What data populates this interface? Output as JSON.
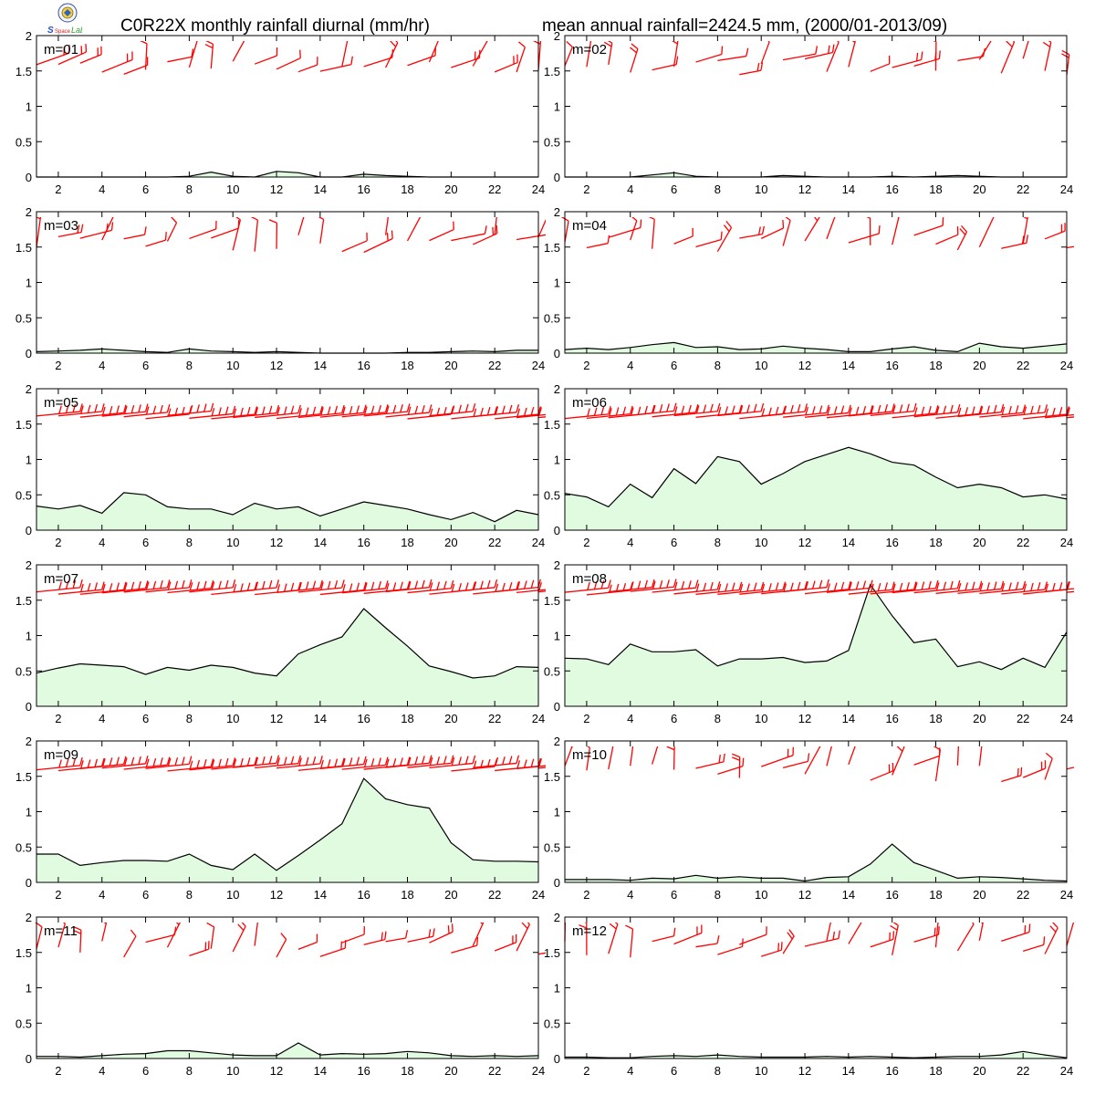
{
  "header": {
    "title_left": "C0R22X monthly rainfall diurnal (mm/hr)",
    "title_right": "mean annual rainfall=2424.5 mm, (2000/01-2013/09)",
    "logo_text": "Lab"
  },
  "colors": {
    "fill": "#e0fbe0",
    "line": "#000000",
    "barb": "#ff0000"
  },
  "chart_data": {
    "type": "area",
    "xlim": [
      1,
      24
    ],
    "ylim": [
      0,
      2
    ],
    "x_ticks": [
      "2",
      "4",
      "6",
      "8",
      "10",
      "12",
      "14",
      "16",
      "18",
      "20",
      "22",
      "24"
    ],
    "y_ticks": [
      "0",
      "0.5",
      "1",
      "1.5",
      "2"
    ],
    "panels": [
      {
        "label": "m=01",
        "values": [
          0.0,
          0.0,
          0.0,
          0.0,
          0.0,
          0.0,
          0.0,
          0.01,
          0.07,
          0.01,
          0.0,
          0.08,
          0.06,
          0.0,
          0.0,
          0.04,
          0.02,
          0.01,
          0.0,
          0.0,
          0.0,
          0.0,
          0.0,
          0.0
        ]
      },
      {
        "label": "m=02",
        "values": [
          0.0,
          0.0,
          0.0,
          0.0,
          0.03,
          0.06,
          0.01,
          0.0,
          0.0,
          0.0,
          0.02,
          0.01,
          0.0,
          0.0,
          0.0,
          0.01,
          0.0,
          0.01,
          0.02,
          0.01,
          0.0,
          0.0,
          0.0,
          0.0
        ]
      },
      {
        "label": "m=03",
        "values": [
          0.02,
          0.03,
          0.04,
          0.06,
          0.04,
          0.02,
          0.01,
          0.06,
          0.03,
          0.02,
          0.01,
          0.02,
          0.01,
          0.0,
          0.0,
          0.0,
          0.0,
          0.01,
          0.01,
          0.02,
          0.03,
          0.02,
          0.04,
          0.04
        ]
      },
      {
        "label": "m=04",
        "values": [
          0.05,
          0.07,
          0.05,
          0.08,
          0.12,
          0.15,
          0.08,
          0.09,
          0.05,
          0.06,
          0.1,
          0.07,
          0.05,
          0.02,
          0.02,
          0.06,
          0.09,
          0.04,
          0.02,
          0.14,
          0.09,
          0.07,
          0.1,
          0.13
        ]
      },
      {
        "label": "m=05",
        "values": [
          0.34,
          0.3,
          0.35,
          0.24,
          0.53,
          0.5,
          0.33,
          0.3,
          0.3,
          0.22,
          0.38,
          0.3,
          0.33,
          0.2,
          0.3,
          0.4,
          0.35,
          0.3,
          0.22,
          0.15,
          0.25,
          0.12,
          0.28,
          0.22
        ]
      },
      {
        "label": "m=06",
        "values": [
          0.52,
          0.47,
          0.33,
          0.65,
          0.46,
          0.87,
          0.66,
          1.04,
          0.97,
          0.65,
          0.8,
          0.97,
          1.07,
          1.17,
          1.08,
          0.96,
          0.92,
          0.75,
          0.6,
          0.65,
          0.6,
          0.47,
          0.5,
          0.44
        ]
      },
      {
        "label": "m=07",
        "values": [
          0.47,
          0.54,
          0.6,
          0.58,
          0.56,
          0.45,
          0.55,
          0.51,
          0.58,
          0.55,
          0.47,
          0.43,
          0.74,
          0.87,
          0.98,
          1.38,
          1.11,
          0.85,
          0.57,
          0.49,
          0.4,
          0.43,
          0.56,
          0.55
        ]
      },
      {
        "label": "m=08",
        "values": [
          0.68,
          0.67,
          0.59,
          0.88,
          0.77,
          0.77,
          0.8,
          0.57,
          0.67,
          0.67,
          0.69,
          0.62,
          0.64,
          0.79,
          1.72,
          1.28,
          0.9,
          0.95,
          0.56,
          0.63,
          0.52,
          0.68,
          0.55,
          1.05
        ]
      },
      {
        "label": "m=09",
        "values": [
          0.4,
          0.4,
          0.24,
          0.28,
          0.31,
          0.31,
          0.3,
          0.4,
          0.24,
          0.18,
          0.4,
          0.17,
          0.38,
          0.6,
          0.83,
          1.47,
          1.18,
          1.1,
          1.05,
          0.56,
          0.32,
          0.3,
          0.3,
          0.29
        ]
      },
      {
        "label": "m=10",
        "values": [
          0.04,
          0.04,
          0.04,
          0.03,
          0.06,
          0.05,
          0.1,
          0.06,
          0.08,
          0.06,
          0.06,
          0.02,
          0.07,
          0.08,
          0.26,
          0.54,
          0.28,
          0.17,
          0.06,
          0.08,
          0.07,
          0.05,
          0.03,
          0.02
        ]
      },
      {
        "label": "m=11",
        "values": [
          0.03,
          0.03,
          0.02,
          0.04,
          0.06,
          0.07,
          0.11,
          0.11,
          0.08,
          0.05,
          0.04,
          0.04,
          0.22,
          0.05,
          0.07,
          0.06,
          0.07,
          0.1,
          0.08,
          0.04,
          0.03,
          0.04,
          0.03,
          0.04
        ]
      },
      {
        "label": "m=12",
        "values": [
          0.02,
          0.02,
          0.01,
          0.01,
          0.03,
          0.04,
          0.03,
          0.05,
          0.03,
          0.02,
          0.02,
          0.02,
          0.03,
          0.02,
          0.03,
          0.02,
          0.01,
          0.02,
          0.03,
          0.03,
          0.05,
          0.1,
          0.05,
          0.01
        ]
      }
    ]
  }
}
